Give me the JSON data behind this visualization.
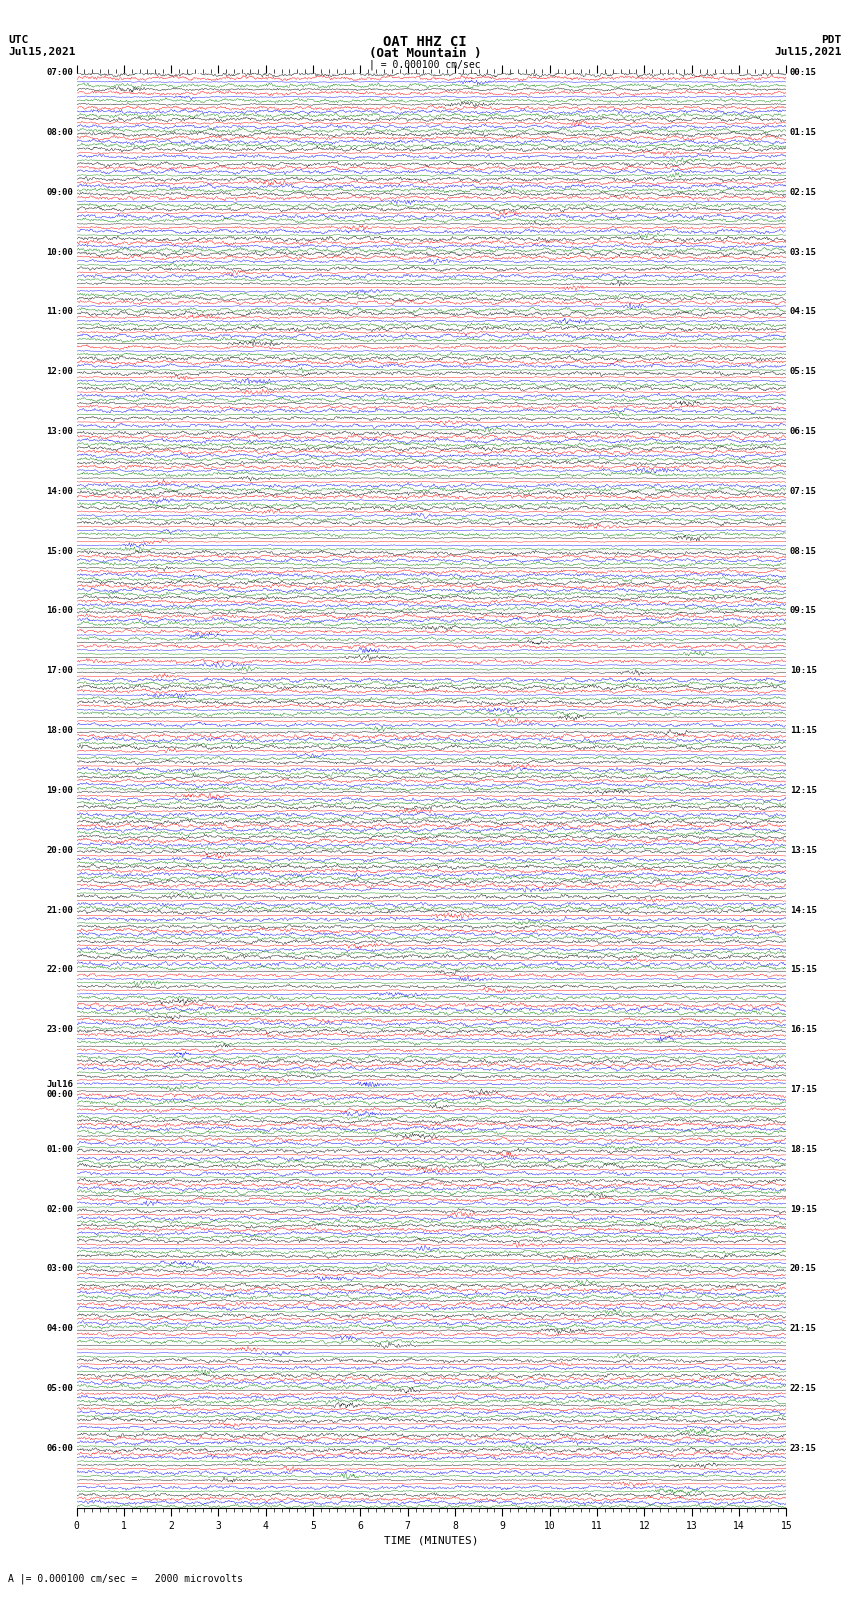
{
  "title_line1": "OAT HHZ CI",
  "title_line2": "(Oat Mountain )",
  "scale_bar": "| = 0.000100 cm/sec",
  "left_header": "UTC",
  "left_date": "Jul15,2021",
  "right_header": "PDT",
  "right_date": "Jul15,2021",
  "footer_scale": "A |= 0.000100 cm/sec =   2000 microvolts",
  "xlabel": "TIME (MINUTES)",
  "xlim": [
    0,
    15
  ],
  "utc_labels": [
    "07:00",
    "08:00",
    "09:00",
    "10:00",
    "11:00",
    "12:00",
    "13:00",
    "14:00",
    "15:00",
    "16:00",
    "17:00",
    "18:00",
    "19:00",
    "20:00",
    "21:00",
    "22:00",
    "23:00",
    "Jul16\n00:00",
    "01:00",
    "02:00",
    "03:00",
    "04:00",
    "05:00",
    "06:00"
  ],
  "pdt_labels": [
    "00:15",
    "01:15",
    "02:15",
    "03:15",
    "04:15",
    "05:15",
    "06:15",
    "07:15",
    "08:15",
    "09:15",
    "10:15",
    "11:15",
    "12:15",
    "13:15",
    "14:15",
    "15:15",
    "16:15",
    "17:15",
    "18:15",
    "19:15",
    "20:15",
    "21:15",
    "22:15",
    "23:15"
  ],
  "trace_colors": [
    "black",
    "red",
    "blue",
    "green"
  ],
  "n_hour_blocks": 24,
  "traces_per_block": 4,
  "background_color": "white",
  "fig_width": 8.5,
  "fig_height": 16.13
}
